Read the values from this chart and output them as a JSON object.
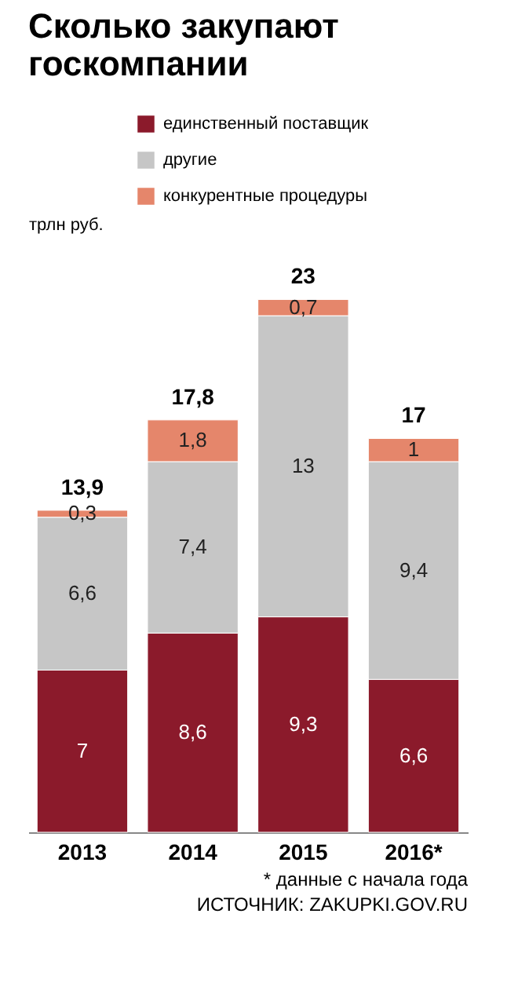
{
  "chart_data": {
    "type": "bar",
    "title": "Сколько закупают госкомпании",
    "ylabel": "трлн руб.",
    "categories": [
      "2013",
      "2014",
      "2015",
      "2016*"
    ],
    "stacked": true,
    "data_labels": true,
    "legend": "top right",
    "series": [
      {
        "name": "единственный поставщик",
        "color": "#8b1a2b",
        "values": [
          7,
          8.6,
          9.3,
          6.6
        ],
        "value_labels": [
          "7",
          "8,6",
          "9,3",
          "6,6"
        ]
      },
      {
        "name": "другие",
        "color": "#c6c6c6",
        "values": [
          6.6,
          7.4,
          13,
          9.4
        ],
        "value_labels": [
          "6,6",
          "7,4",
          "13",
          "9,4"
        ]
      },
      {
        "name": "конкурентные процедуры",
        "color": "#e5866b",
        "values": [
          0.3,
          1.8,
          0.7,
          1
        ],
        "value_labels": [
          "0,3",
          "1,8",
          "0,7",
          "1"
        ]
      }
    ],
    "totals": [
      "13,9",
      "17,8",
      "23",
      "17"
    ],
    "annotations": [
      "* данные с начала года",
      "ИСТОЧНИК: ZAKUPKI.GOV.RU"
    ]
  }
}
